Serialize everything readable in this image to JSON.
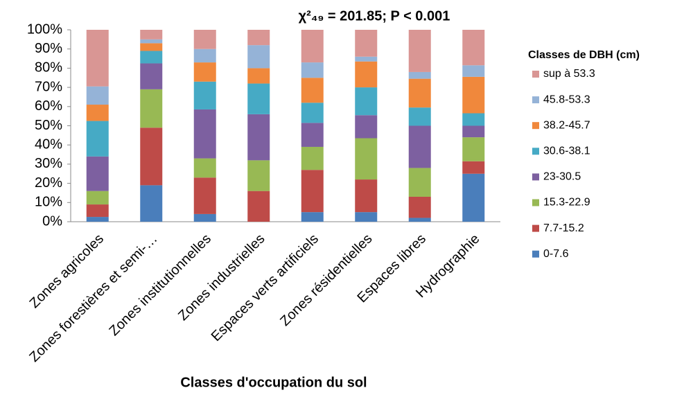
{
  "chart_data": {
    "type": "stacked_bar_100",
    "title": "χ²₄₉ = 201.85; P < 0.001",
    "x_label": "Classes d'occupation du sol",
    "legend_title": "Classes de DBH (cm)",
    "categories": [
      "Zones agricoles",
      "Zones forestières et semi-…",
      "Zones institutionnelles",
      "Zones industrielles",
      "Espaces verts artificiels",
      "Zones résidentielles",
      "Espaces libres",
      "Hydrographie"
    ],
    "series": [
      {
        "name": "0-7.6",
        "color": "#4a7ebb",
        "values": [
          2.5,
          19,
          4,
          0,
          5,
          5,
          2,
          25
        ]
      },
      {
        "name": "7.7-15.2",
        "color": "#be4b48",
        "values": [
          6.5,
          30,
          19,
          16,
          22,
          17,
          11,
          6.5
        ]
      },
      {
        "name": "15.3-22.9",
        "color": "#98b954",
        "values": [
          7,
          20,
          10,
          16,
          12,
          21.5,
          15,
          12.5
        ]
      },
      {
        "name": "23-30.5",
        "color": "#7d60a0",
        "values": [
          18,
          13.5,
          25.5,
          24,
          12.5,
          12,
          22,
          6
        ]
      },
      {
        "name": "30.6-38.1",
        "color": "#46aac5",
        "values": [
          18.5,
          6.5,
          14.5,
          16,
          10.5,
          14.5,
          9.5,
          6.5
        ]
      },
      {
        "name": "38.2-45.7",
        "color": "#f0883c",
        "values": [
          8.5,
          4,
          10,
          8,
          13,
          13.5,
          15,
          19
        ]
      },
      {
        "name": "45.8-53.3",
        "color": "#95b3d7",
        "values": [
          9.5,
          2,
          7,
          12,
          8,
          2.5,
          3.5,
          6
        ]
      },
      {
        "name": "sup à 53.3",
        "color": "#d99694",
        "values": [
          29.5,
          5,
          10,
          8,
          17,
          14,
          22,
          18.5
        ]
      }
    ],
    "ylim": [
      0,
      100
    ],
    "yticks": [
      {
        "value": 0,
        "label": "0%"
      },
      {
        "value": 10,
        "label": "10%"
      },
      {
        "value": 20,
        "label": "20%"
      },
      {
        "value": 30,
        "label": "30%"
      },
      {
        "value": 40,
        "label": "40%"
      },
      {
        "value": 50,
        "label": "50%"
      },
      {
        "value": 60,
        "label": "60%"
      },
      {
        "value": 70,
        "label": "70%"
      },
      {
        "value": 80,
        "label": "80%"
      },
      {
        "value": 90,
        "label": "90%"
      },
      {
        "value": 100,
        "label": "100%"
      }
    ]
  }
}
